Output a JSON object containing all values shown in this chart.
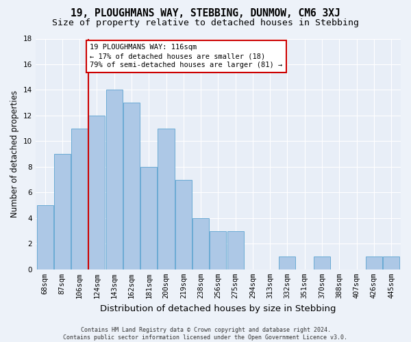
{
  "title": "19, PLOUGHMANS WAY, STEBBING, DUNMOW, CM6 3XJ",
  "subtitle": "Size of property relative to detached houses in Stebbing",
  "xlabel": "Distribution of detached houses by size in Stebbing",
  "ylabel": "Number of detached properties",
  "categories": [
    "68sqm",
    "87sqm",
    "106sqm",
    "124sqm",
    "143sqm",
    "162sqm",
    "181sqm",
    "200sqm",
    "219sqm",
    "238sqm",
    "256sqm",
    "275sqm",
    "294sqm",
    "313sqm",
    "332sqm",
    "351sqm",
    "370sqm",
    "388sqm",
    "407sqm",
    "426sqm",
    "445sqm"
  ],
  "values": [
    5,
    9,
    11,
    12,
    14,
    13,
    8,
    11,
    7,
    4,
    3,
    3,
    0,
    0,
    1,
    0,
    1,
    0,
    0,
    1,
    1
  ],
  "bar_color": "#adc8e6",
  "bar_edgecolor": "#6aaad4",
  "redline_x": 2.5,
  "annotation_line1": "19 PLOUGHMANS WAY: 116sqm",
  "annotation_line2": "← 17% of detached houses are smaller (18)",
  "annotation_line3": "79% of semi-detached houses are larger (81) →",
  "annotation_box_facecolor": "#ffffff",
  "annotation_box_edgecolor": "#cc0000",
  "fig_facecolor": "#edf2f9",
  "ax_facecolor": "#e8eef7",
  "grid_color": "#ffffff",
  "ylim": [
    0,
    18
  ],
  "yticks": [
    0,
    2,
    4,
    6,
    8,
    10,
    12,
    14,
    16,
    18
  ],
  "footer": "Contains HM Land Registry data © Crown copyright and database right 2024.\nContains public sector information licensed under the Open Government Licence v3.0.",
  "title_fontsize": 10.5,
  "subtitle_fontsize": 9.5,
  "xlabel_fontsize": 9.5,
  "ylabel_fontsize": 8.5,
  "tick_fontsize": 7.5,
  "ann_fontsize": 7.5,
  "footer_fontsize": 6.0
}
